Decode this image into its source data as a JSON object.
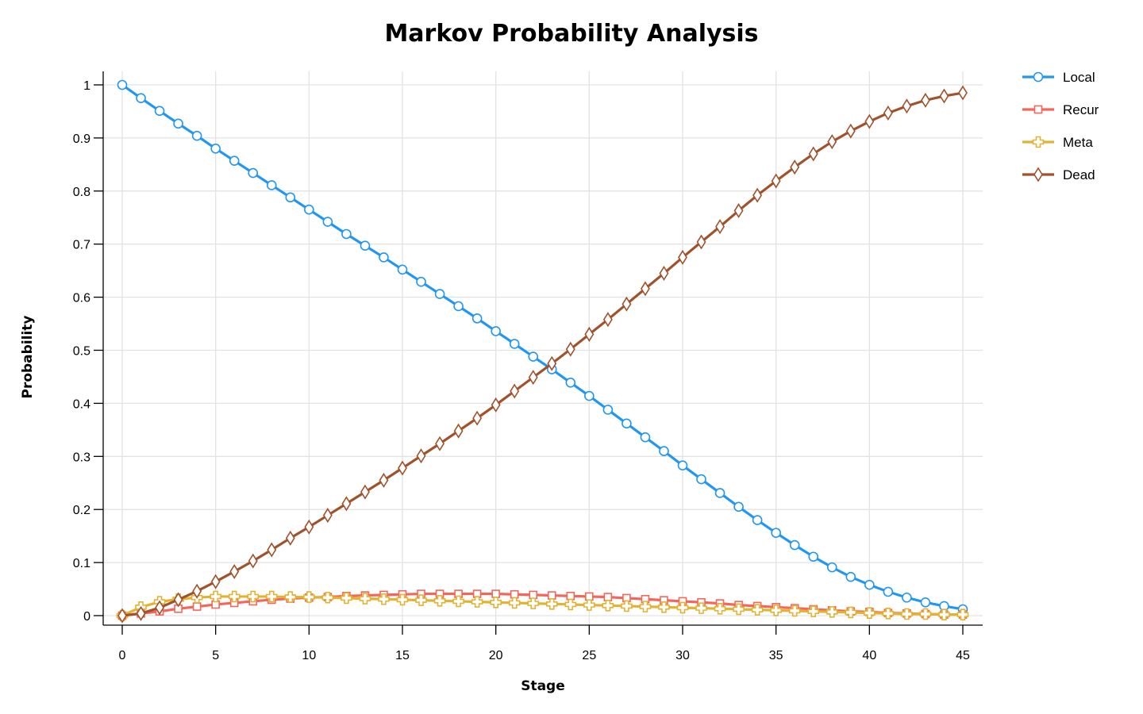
{
  "chart_data": {
    "type": "line",
    "title": "Markov Probability Analysis",
    "xlabel": "Stage",
    "ylabel": "Probability",
    "xlim": [
      0,
      45
    ],
    "ylim": [
      0,
      1
    ],
    "xticks": [
      0,
      5,
      10,
      15,
      20,
      25,
      30,
      35,
      40,
      45
    ],
    "yticks": [
      0,
      0.1,
      0.2,
      0.3,
      0.4,
      0.5,
      0.6,
      0.7,
      0.8,
      0.9,
      1
    ],
    "ytick_labels": [
      "0",
      "0.1",
      "0.2",
      "0.3",
      "0.4",
      "0.5",
      "0.6",
      "0.7",
      "0.8",
      "0.9",
      "1"
    ],
    "grid": true,
    "legend": "top-right",
    "x": [
      0,
      1,
      2,
      3,
      4,
      5,
      6,
      7,
      8,
      9,
      10,
      11,
      12,
      13,
      14,
      15,
      16,
      17,
      18,
      19,
      20,
      21,
      22,
      23,
      24,
      25,
      26,
      27,
      28,
      29,
      30,
      31,
      32,
      33,
      34,
      35,
      36,
      37,
      38,
      39,
      40,
      41,
      42,
      43,
      44,
      45
    ],
    "series": [
      {
        "name": "Local",
        "color": "#2196f3",
        "marker": "circle",
        "values": [
          1.0,
          0.975,
          0.951,
          0.927,
          0.904,
          0.88,
          0.857,
          0.834,
          0.811,
          0.788,
          0.765,
          0.742,
          0.719,
          0.697,
          0.675,
          0.652,
          0.629,
          0.606,
          0.583,
          0.56,
          0.536,
          0.512,
          0.488,
          0.464,
          0.439,
          0.414,
          0.388,
          0.362,
          0.336,
          0.31,
          0.283,
          0.257,
          0.231,
          0.205,
          0.18,
          0.156,
          0.133,
          0.111,
          0.091,
          0.073,
          0.058,
          0.045,
          0.034,
          0.025,
          0.018,
          0.012
        ]
      },
      {
        "name": "Recur",
        "color": "#f4665a",
        "marker": "square",
        "values": [
          0.0,
          0.004,
          0.008,
          0.013,
          0.017,
          0.021,
          0.024,
          0.027,
          0.03,
          0.032,
          0.034,
          0.035,
          0.037,
          0.038,
          0.039,
          0.04,
          0.041,
          0.041,
          0.041,
          0.041,
          0.041,
          0.04,
          0.039,
          0.038,
          0.037,
          0.036,
          0.035,
          0.033,
          0.031,
          0.029,
          0.027,
          0.025,
          0.023,
          0.02,
          0.018,
          0.016,
          0.014,
          0.012,
          0.01,
          0.008,
          0.007,
          0.005,
          0.004,
          0.003,
          0.002,
          0.002
        ]
      },
      {
        "name": "Meta",
        "color": "#e2b332",
        "marker": "cross",
        "values": [
          0.0,
          0.016,
          0.026,
          0.031,
          0.034,
          0.036,
          0.036,
          0.036,
          0.036,
          0.035,
          0.035,
          0.034,
          0.033,
          0.032,
          0.031,
          0.03,
          0.029,
          0.028,
          0.027,
          0.026,
          0.025,
          0.024,
          0.023,
          0.022,
          0.021,
          0.02,
          0.019,
          0.018,
          0.017,
          0.016,
          0.015,
          0.014,
          0.013,
          0.012,
          0.011,
          0.01,
          0.009,
          0.008,
          0.007,
          0.006,
          0.005,
          0.004,
          0.003,
          0.003,
          0.002,
          0.002
        ]
      },
      {
        "name": "Dead",
        "color": "#a0522d",
        "marker": "diamond",
        "values": [
          0.0,
          0.004,
          0.015,
          0.03,
          0.046,
          0.064,
          0.083,
          0.103,
          0.124,
          0.146,
          0.167,
          0.189,
          0.211,
          0.233,
          0.255,
          0.278,
          0.301,
          0.324,
          0.348,
          0.372,
          0.397,
          0.423,
          0.449,
          0.475,
          0.502,
          0.53,
          0.558,
          0.587,
          0.616,
          0.645,
          0.675,
          0.704,
          0.733,
          0.763,
          0.792,
          0.819,
          0.845,
          0.87,
          0.893,
          0.913,
          0.931,
          0.947,
          0.96,
          0.971,
          0.979,
          0.985
        ]
      }
    ]
  }
}
